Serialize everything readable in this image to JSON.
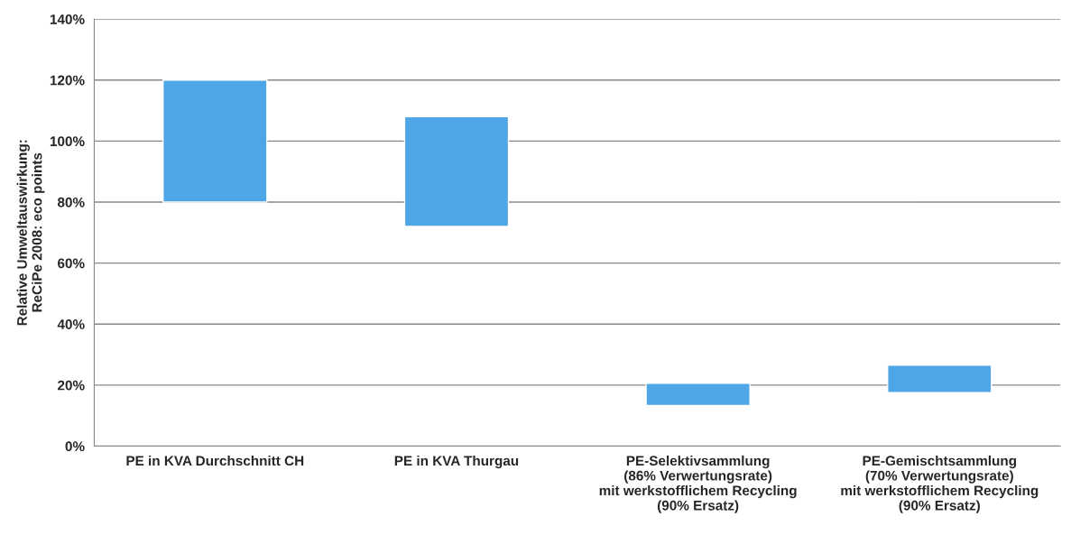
{
  "chart_data": {
    "type": "bar",
    "ylabel": "Relative Umweltauswirkung:\nReCiPe 2008: eco points",
    "categories": [
      "PE in KVA Durchschnitt CH",
      "PE in KVA Thurgau",
      "PE-Selektivsammlung\n(86% Verwertungsrate)\nmit werkstofflichem Recycling\n(90% Ersatz)",
      "PE-Gemischtsammlung\n(70% Verwertungsrate)\nmit werkstofflichem Recycling\n(90% Ersatz)"
    ],
    "base": [
      80,
      72,
      13.3,
      17.5
    ],
    "values": [
      40,
      36,
      7.3,
      9
    ],
    "color": "#4ea6e6",
    "ylim": [
      0,
      140
    ],
    "yticks": [
      {
        "value": 0,
        "label": "0%"
      },
      {
        "value": 20,
        "label": "20%"
      },
      {
        "value": 40,
        "label": "40%"
      },
      {
        "value": 60,
        "label": "60%"
      },
      {
        "value": 80,
        "label": "80%"
      },
      {
        "value": 100,
        "label": "100%"
      },
      {
        "value": 120,
        "label": "120%"
      },
      {
        "value": 140,
        "label": "140%"
      }
    ],
    "grid": "y",
    "legend": false
  }
}
